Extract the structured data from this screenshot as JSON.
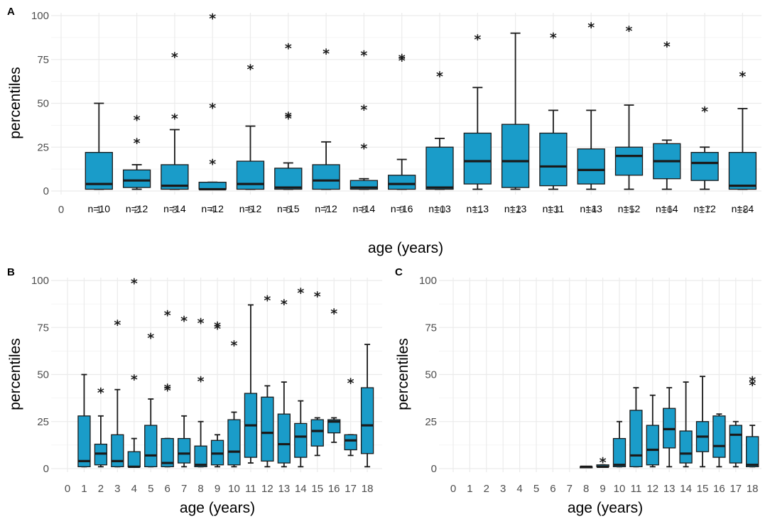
{
  "colors": {
    "box_fill": "#1a9cc9",
    "box_stroke": "#1a1a1a",
    "grid": "#ebebeb",
    "tick_text": "#4d4d4d"
  },
  "chart_data": [
    {
      "panel": "A",
      "type": "boxplot",
      "xlabel": "age (years)",
      "ylabel": "percentiles",
      "ylim": [
        0,
        100
      ],
      "yticks": [
        "0",
        "25",
        "50",
        "75",
        "100"
      ],
      "x_ticks": [
        "0",
        "1",
        "2",
        "3",
        "4",
        "5",
        "6",
        "7",
        "8",
        "9",
        "10",
        "11",
        "12",
        "13",
        "14",
        "15",
        "16",
        "17",
        "18"
      ],
      "boxes": [
        {
          "age": 1,
          "lower": 1,
          "q1": 1,
          "median": 4,
          "q3": 22,
          "upper": 50,
          "outliers": [],
          "n": "n=10"
        },
        {
          "age": 2,
          "lower": 1,
          "q1": 2,
          "median": 6,
          "q3": 12,
          "upper": 15,
          "outliers": [
            28,
            41
          ],
          "n": "n=12"
        },
        {
          "age": 3,
          "lower": 1,
          "q1": 1,
          "median": 3,
          "q3": 15,
          "upper": 35,
          "outliers": [
            42,
            77
          ],
          "n": "n=14"
        },
        {
          "age": 4,
          "lower": 1,
          "q1": 1,
          "median": 1,
          "q3": 5,
          "upper": 5,
          "outliers": [
            16,
            48,
            99
          ],
          "n": "n=12"
        },
        {
          "age": 5,
          "lower": 1,
          "q1": 1,
          "median": 4,
          "q3": 17,
          "upper": 37,
          "outliers": [
            70
          ],
          "n": "n=12"
        },
        {
          "age": 6,
          "lower": 1,
          "q1": 1,
          "median": 2,
          "q3": 13,
          "upper": 16,
          "outliers": [
            42,
            43,
            82
          ],
          "n": "n=15"
        },
        {
          "age": 7,
          "lower": 1,
          "q1": 1,
          "median": 6,
          "q3": 15,
          "upper": 28,
          "outliers": [
            79
          ],
          "n": "n=12"
        },
        {
          "age": 8,
          "lower": 1,
          "q1": 1,
          "median": 2,
          "q3": 6,
          "upper": 7,
          "outliers": [
            25,
            47,
            78
          ],
          "n": "n=14"
        },
        {
          "age": 9,
          "lower": 1,
          "q1": 1,
          "median": 4,
          "q3": 9,
          "upper": 18,
          "outliers": [
            75,
            76
          ],
          "n": "n=16"
        },
        {
          "age": 10,
          "lower": 1,
          "q1": 1,
          "median": 2,
          "q3": 25,
          "upper": 30,
          "outliers": [
            66
          ],
          "n": "n=13"
        },
        {
          "age": 11,
          "lower": 1,
          "q1": 4,
          "median": 17,
          "q3": 33,
          "upper": 59,
          "outliers": [
            87
          ],
          "n": "n=13"
        },
        {
          "age": 12,
          "lower": 1,
          "q1": 2,
          "median": 17,
          "q3": 38,
          "upper": 90,
          "outliers": [],
          "n": "n=13"
        },
        {
          "age": 13,
          "lower": 1,
          "q1": 3,
          "median": 14,
          "q3": 33,
          "upper": 46,
          "outliers": [
            88
          ],
          "n": "n=11"
        },
        {
          "age": 14,
          "lower": 1,
          "q1": 4,
          "median": 12,
          "q3": 24,
          "upper": 46,
          "outliers": [
            94
          ],
          "n": "n=13"
        },
        {
          "age": 15,
          "lower": 1,
          "q1": 9,
          "median": 20,
          "q3": 25,
          "upper": 49,
          "outliers": [
            92
          ],
          "n": "n=12"
        },
        {
          "age": 16,
          "lower": 1,
          "q1": 7,
          "median": 17,
          "q3": 27,
          "upper": 29,
          "outliers": [
            83
          ],
          "n": "n=14"
        },
        {
          "age": 17,
          "lower": 1,
          "q1": 6,
          "median": 16,
          "q3": 22,
          "upper": 25,
          "outliers": [
            46
          ],
          "n": "n=12"
        },
        {
          "age": 18,
          "lower": 1,
          "q1": 1,
          "median": 3,
          "q3": 22,
          "upper": 47,
          "outliers": [
            66
          ],
          "n": "n=24"
        }
      ]
    },
    {
      "panel": "B",
      "type": "boxplot",
      "xlabel": "age (years)",
      "ylabel": "percentiles",
      "ylim": [
        0,
        100
      ],
      "yticks": [
        "0",
        "25",
        "50",
        "75",
        "100"
      ],
      "x_ticks": [
        "0",
        "1",
        "2",
        "3",
        "4",
        "5",
        "6",
        "7",
        "8",
        "9",
        "10",
        "11",
        "12",
        "13",
        "14",
        "15",
        "16",
        "17",
        "18"
      ],
      "boxes": [
        {
          "age": 1,
          "lower": 1,
          "q1": 1,
          "median": 4,
          "q3": 28,
          "upper": 50,
          "outliers": []
        },
        {
          "age": 2,
          "lower": 1,
          "q1": 2,
          "median": 8,
          "q3": 13,
          "upper": 28,
          "outliers": [
            41
          ]
        },
        {
          "age": 3,
          "lower": 1,
          "q1": 1,
          "median": 4,
          "q3": 18,
          "upper": 42,
          "outliers": [
            77
          ]
        },
        {
          "age": 4,
          "lower": 1,
          "q1": 1,
          "median": 1,
          "q3": 9,
          "upper": 16,
          "outliers": [
            48,
            99
          ]
        },
        {
          "age": 5,
          "lower": 1,
          "q1": 1,
          "median": 7,
          "q3": 23,
          "upper": 37,
          "outliers": [
            70
          ]
        },
        {
          "age": 6,
          "lower": 1,
          "q1": 1,
          "median": 3,
          "q3": 16,
          "upper": 16,
          "outliers": [
            42,
            43,
            82
          ]
        },
        {
          "age": 7,
          "lower": 1,
          "q1": 3,
          "median": 8,
          "q3": 16,
          "upper": 28,
          "outliers": [
            79
          ]
        },
        {
          "age": 8,
          "lower": 1,
          "q1": 1,
          "median": 2,
          "q3": 12,
          "upper": 25,
          "outliers": [
            47,
            78
          ]
        },
        {
          "age": 9,
          "lower": 1,
          "q1": 2,
          "median": 8,
          "q3": 15,
          "upper": 18,
          "outliers": [
            75,
            76
          ]
        },
        {
          "age": 10,
          "lower": 1,
          "q1": 2,
          "median": 9,
          "q3": 26,
          "upper": 30,
          "outliers": [
            66
          ]
        },
        {
          "age": 11,
          "lower": 3,
          "q1": 6,
          "median": 23,
          "q3": 40,
          "upper": 87,
          "outliers": []
        },
        {
          "age": 12,
          "lower": 1,
          "q1": 4,
          "median": 19,
          "q3": 38,
          "upper": 44,
          "outliers": [
            90
          ]
        },
        {
          "age": 13,
          "lower": 1,
          "q1": 3,
          "median": 13,
          "q3": 29,
          "upper": 46,
          "outliers": [
            88
          ]
        },
        {
          "age": 14,
          "lower": 1,
          "q1": 6,
          "median": 17,
          "q3": 24,
          "upper": 36,
          "outliers": [
            94
          ]
        },
        {
          "age": 15,
          "lower": 7,
          "q1": 12,
          "median": 20,
          "q3": 26,
          "upper": 27,
          "outliers": [
            92
          ]
        },
        {
          "age": 16,
          "lower": 14,
          "q1": 19,
          "median": 25,
          "q3": 26,
          "upper": 27,
          "outliers": [
            83
          ]
        },
        {
          "age": 17,
          "lower": 7,
          "q1": 10,
          "median": 15,
          "q3": 18,
          "upper": 18,
          "outliers": [
            46
          ]
        },
        {
          "age": 18,
          "lower": 1,
          "q1": 8,
          "median": 23,
          "q3": 43,
          "upper": 66,
          "outliers": []
        }
      ]
    },
    {
      "panel": "C",
      "type": "boxplot",
      "xlabel": "age (years)",
      "ylabel": "percentiles",
      "ylim": [
        0,
        100
      ],
      "yticks": [
        "0",
        "25",
        "50",
        "75",
        "100"
      ],
      "x_ticks": [
        "0",
        "1",
        "2",
        "3",
        "4",
        "5",
        "6",
        "7",
        "8",
        "9",
        "10",
        "11",
        "12",
        "13",
        "14",
        "15",
        "16",
        "17",
        "18"
      ],
      "boxes": [
        {
          "age": 8,
          "lower": 1,
          "q1": 1,
          "median": 1,
          "q3": 1,
          "upper": 1,
          "outliers": []
        },
        {
          "age": 9,
          "lower": 1,
          "q1": 1,
          "median": 1,
          "q3": 2,
          "upper": 2,
          "outliers": [
            4
          ]
        },
        {
          "age": 10,
          "lower": 1,
          "q1": 1,
          "median": 2,
          "q3": 16,
          "upper": 25,
          "outliers": []
        },
        {
          "age": 11,
          "lower": 1,
          "q1": 1,
          "median": 7,
          "q3": 31,
          "upper": 43,
          "outliers": []
        },
        {
          "age": 12,
          "lower": 1,
          "q1": 2,
          "median": 10,
          "q3": 23,
          "upper": 39,
          "outliers": []
        },
        {
          "age": 13,
          "lower": 1,
          "q1": 11,
          "median": 21,
          "q3": 32,
          "upper": 43,
          "outliers": []
        },
        {
          "age": 14,
          "lower": 1,
          "q1": 3,
          "median": 8,
          "q3": 20,
          "upper": 46,
          "outliers": []
        },
        {
          "age": 15,
          "lower": 1,
          "q1": 9,
          "median": 17,
          "q3": 25,
          "upper": 49,
          "outliers": []
        },
        {
          "age": 16,
          "lower": 1,
          "q1": 6,
          "median": 12,
          "q3": 28,
          "upper": 29,
          "outliers": []
        },
        {
          "age": 17,
          "lower": 1,
          "q1": 3,
          "median": 18,
          "q3": 23,
          "upper": 25,
          "outliers": []
        },
        {
          "age": 18,
          "lower": 1,
          "q1": 1,
          "median": 2,
          "q3": 17,
          "upper": 23,
          "outliers": [
            45,
            47
          ]
        }
      ]
    }
  ]
}
